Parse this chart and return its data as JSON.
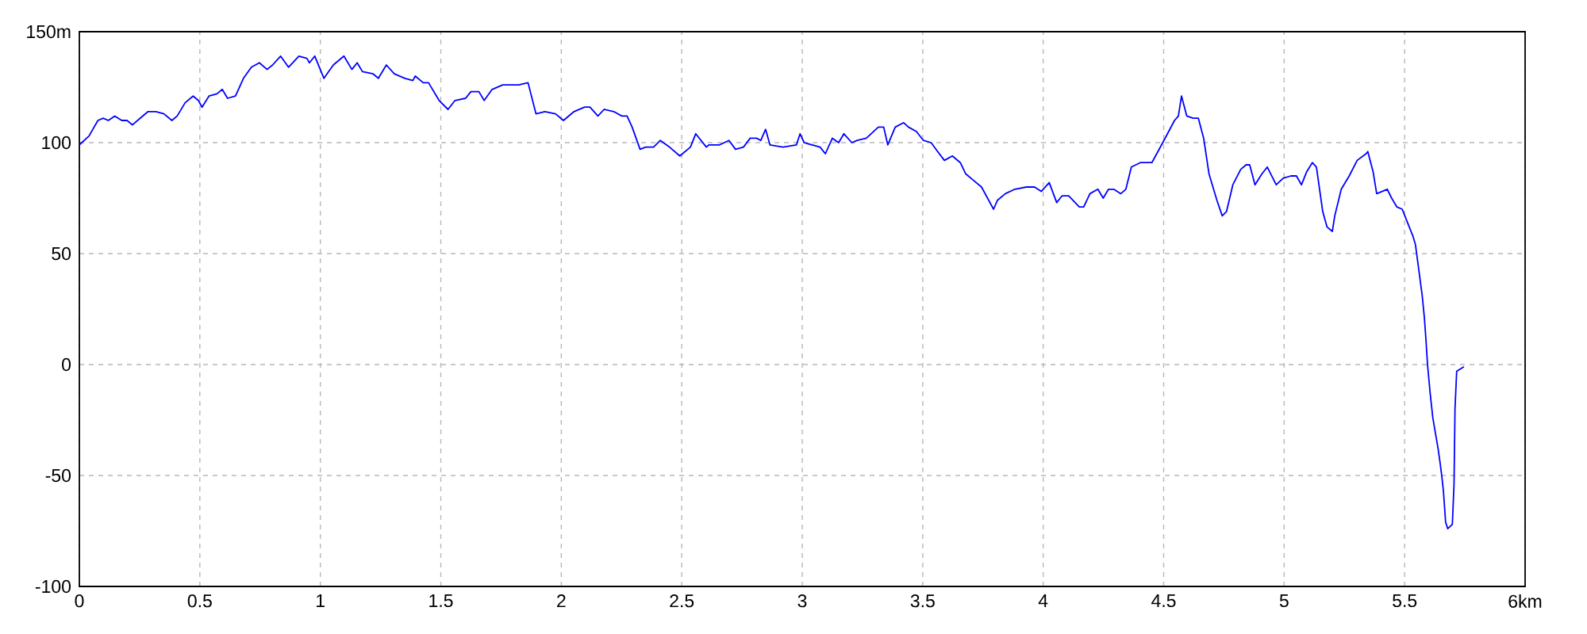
{
  "chart_data": {
    "type": "line",
    "color": "#0000ff",
    "x": [
      0,
      0.04,
      0.077,
      0.099,
      0.12,
      0.147,
      0.176,
      0.198,
      0.22,
      0.252,
      0.285,
      0.318,
      0.351,
      0.384,
      0.406,
      0.439,
      0.472,
      0.494,
      0.509,
      0.538,
      0.571,
      0.593,
      0.615,
      0.648,
      0.681,
      0.714,
      0.747,
      0.779,
      0.802,
      0.835,
      0.868,
      0.911,
      0.944,
      0.955,
      0.977,
      1.015,
      1.054,
      1.098,
      1.131,
      1.153,
      1.175,
      1.219,
      1.241,
      1.274,
      1.307,
      1.351,
      1.384,
      1.394,
      1.427,
      1.449,
      1.493,
      1.53,
      1.559,
      1.603,
      1.625,
      1.658,
      1.68,
      1.713,
      1.757,
      1.8,
      1.823,
      1.862,
      1.895,
      1.932,
      1.976,
      2.009,
      2.053,
      2.097,
      2.119,
      2.152,
      2.178,
      2.218,
      2.251,
      2.273,
      2.294,
      2.327,
      2.35,
      2.383,
      2.411,
      2.449,
      2.492,
      2.536,
      2.558,
      2.602,
      2.613,
      2.657,
      2.696,
      2.723,
      2.756,
      2.784,
      2.811,
      2.828,
      2.848,
      2.866,
      2.92,
      2.976,
      2.991,
      3.008,
      3.074,
      3.096,
      3.125,
      3.151,
      3.173,
      3.206,
      3.228,
      3.266,
      3.316,
      3.338,
      3.355,
      3.386,
      3.421,
      3.441,
      3.474,
      3.503,
      3.535,
      3.562,
      3.59,
      3.623,
      3.656,
      3.678,
      3.711,
      3.744,
      3.794,
      3.81,
      3.843,
      3.882,
      3.93,
      3.964,
      3.992,
      4.025,
      4.056,
      4.078,
      4.106,
      4.15,
      4.168,
      4.194,
      4.227,
      4.249,
      4.271,
      4.293,
      4.322,
      4.343,
      4.366,
      4.403,
      4.451,
      4.501,
      4.545,
      4.561,
      4.574,
      4.596,
      4.622,
      4.644,
      4.666,
      4.688,
      4.721,
      4.743,
      4.761,
      4.787,
      4.82,
      4.842,
      4.857,
      4.879,
      4.908,
      4.93,
      4.967,
      4.996,
      5.028,
      5.051,
      5.072,
      5.094,
      5.117,
      5.134,
      5.16,
      5.178,
      5.2,
      5.21,
      5.237,
      5.27,
      5.303,
      5.34,
      5.347,
      5.369,
      5.384,
      5.406,
      5.428,
      5.446,
      5.468,
      5.49,
      5.512,
      5.534,
      5.545,
      5.573,
      5.582,
      5.588,
      5.595,
      5.606,
      5.617,
      5.628,
      5.639,
      5.648,
      5.655,
      5.661,
      5.67,
      5.679,
      5.698,
      5.705,
      5.709,
      5.716,
      5.731,
      5.746
    ],
    "values": [
      99,
      103,
      110,
      111,
      110,
      112,
      110,
      110,
      108,
      111,
      114,
      114,
      113,
      110,
      112,
      118,
      121,
      119,
      116,
      121,
      122,
      124,
      120,
      121,
      129,
      134,
      136,
      133,
      135,
      139,
      134,
      139,
      138,
      136,
      139,
      129,
      135,
      139,
      133,
      136,
      132,
      131,
      129,
      135,
      131,
      129,
      128,
      130,
      127,
      127,
      119,
      115,
      119,
      120,
      123,
      123,
      119,
      124,
      126,
      126,
      126,
      127,
      113,
      114,
      113,
      110,
      114,
      116,
      116,
      112,
      115,
      114,
      112,
      112,
      107,
      97,
      98,
      98,
      101,
      98,
      94,
      98,
      104,
      98,
      99,
      99,
      101,
      97,
      98,
      102,
      102,
      101,
      106,
      99,
      98,
      99,
      104,
      100,
      98,
      95,
      102,
      100,
      104,
      100,
      101,
      102,
      107,
      107,
      99,
      107,
      109,
      107,
      105,
      101,
      100,
      96,
      92,
      94,
      91,
      86,
      83,
      80,
      70,
      74,
      77,
      79,
      80,
      80,
      78,
      82,
      73,
      76,
      76,
      71,
      71,
      77,
      79,
      75,
      79,
      79,
      77,
      79,
      89,
      91,
      91,
      101,
      110,
      112,
      121,
      112,
      111,
      111,
      102,
      86,
      74,
      67,
      69,
      81,
      88,
      90,
      90,
      81,
      86,
      89,
      81,
      84,
      85,
      85,
      81,
      87,
      91,
      89,
      69,
      62,
      60,
      67,
      79,
      85,
      92,
      95,
      96,
      87,
      77,
      78,
      79,
      75,
      71,
      70,
      64,
      58,
      54,
      31,
      21,
      12,
      0,
      -13,
      -24,
      -31,
      -38,
      -45,
      -51,
      -57,
      -71,
      -74,
      -72,
      -54,
      -20,
      -3,
      -2,
      -1
    ],
    "xlim": [
      0,
      6
    ],
    "ylim": [
      -100,
      150
    ],
    "xticks": [
      0,
      0.5,
      1,
      1.5,
      2,
      2.5,
      3,
      3.5,
      4,
      4.5,
      5,
      5.5,
      {
        "value": 6,
        "label": "6km"
      }
    ],
    "yticks": [
      -100,
      -50,
      0,
      50,
      100,
      {
        "value": 150,
        "label": "150m"
      }
    ],
    "grid": true
  }
}
